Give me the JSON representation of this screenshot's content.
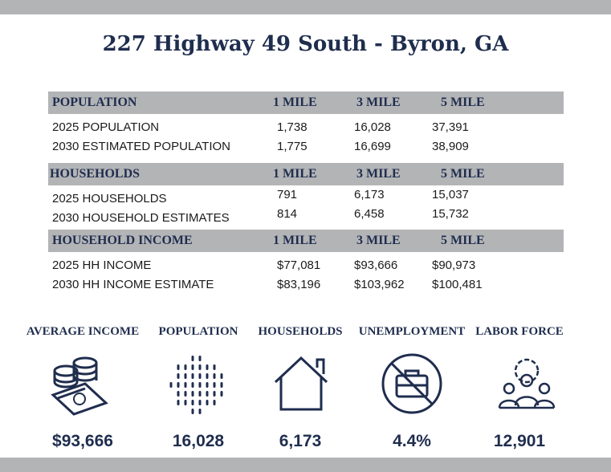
{
  "title": "227 Highway 49 South - Byron, GA",
  "sections": [
    {
      "header": [
        "POPULATION",
        "1 MILE",
        "3 MILE",
        "5 MILE"
      ],
      "rows": [
        [
          "2025 POPULATION",
          "1,738",
          "16,028",
          "37,391"
        ],
        [
          "2030 ESTIMATED POPULATION",
          "1,775",
          "16,699",
          "38,909"
        ]
      ]
    },
    {
      "header": [
        "HOUSEHOLDS",
        "1 MILE",
        "3 MILE",
        "5 MILE"
      ],
      "rows": [
        [
          "2025 HOUSEHOLDS",
          "791",
          "6,173",
          "15,037"
        ],
        [
          "2030 HOUSEHOLD ESTIMATES",
          "814",
          "6,458",
          "15,732"
        ]
      ]
    },
    {
      "header": [
        "HOUSEHOLD INCOME",
        "1 MILE",
        "3 MILE",
        "5 MILE"
      ],
      "rows": [
        [
          "2025 HH INCOME",
          "$77,081",
          "$93,666",
          "$90,973"
        ],
        [
          "2030 HH INCOME ESTIMATE",
          "$83,196",
          "$103,962",
          "$100,481"
        ]
      ]
    }
  ],
  "stats": [
    {
      "label": "AVERAGE INCOME",
      "value": "$93,666"
    },
    {
      "label": "POPULATION",
      "value": "16,028"
    },
    {
      "label": "HOUSEHOLDS",
      "value": "6,173"
    },
    {
      "label": "UNEMPLOYMENT",
      "value": "4.4%"
    },
    {
      "label": "LABOR FORCE",
      "value": "12,901"
    }
  ]
}
